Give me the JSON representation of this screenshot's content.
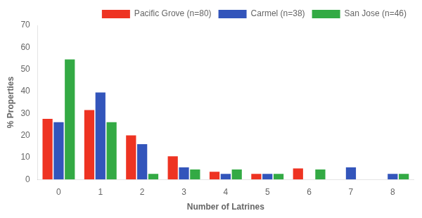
{
  "chart_data": {
    "type": "bar",
    "categories": [
      "0",
      "1",
      "2",
      "3",
      "4",
      "5",
      "6",
      "7",
      "8"
    ],
    "series": [
      {
        "name": "Pacific Grove (n=80)",
        "color": "#EE3322",
        "values": [
          27.5,
          31.5,
          20,
          10.5,
          3.5,
          2.5,
          5,
          0,
          0
        ]
      },
      {
        "name": "Carmel (n=38)",
        "color": "#3355BB",
        "values": [
          26,
          39.5,
          16,
          5.5,
          2.5,
          2.5,
          0,
          5.5,
          2.5
        ]
      },
      {
        "name": "San Jose (n=46)",
        "color": "#33AA44",
        "values": [
          54.5,
          26,
          2.5,
          4.5,
          4.5,
          2.5,
          4.5,
          0,
          2.5
        ]
      }
    ],
    "xlabel": "Number of Latrines",
    "ylabel": "% Properties",
    "ylim": [
      0,
      70
    ],
    "yticks": [
      0,
      10,
      20,
      30,
      40,
      50,
      60,
      70
    ],
    "grid": false,
    "legend": "upper right"
  }
}
